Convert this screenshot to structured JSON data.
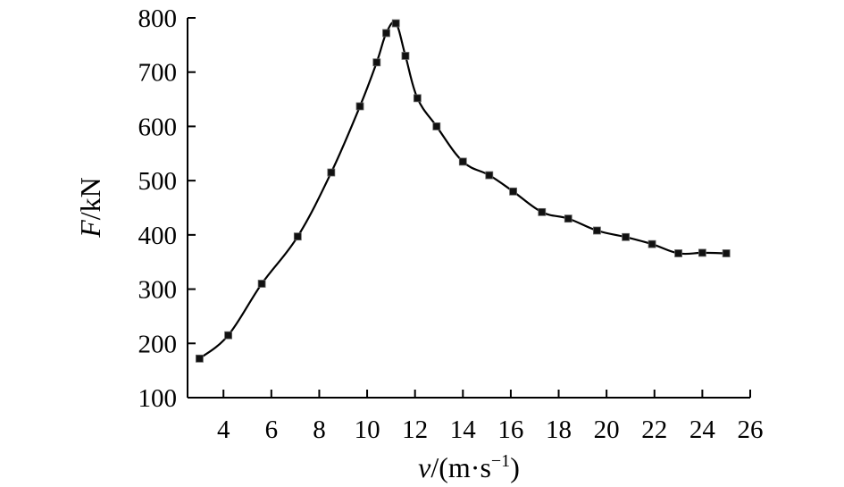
{
  "chart_data": {
    "type": "line",
    "title": "",
    "xlabel": {
      "var": "v",
      "unit_open": "/(m·s",
      "unit_sup": "−1",
      "unit_close": ")"
    },
    "ylabel": {
      "var": "F",
      "unit": "/kN"
    },
    "xlim": [
      2.5,
      26
    ],
    "ylim": [
      100,
      800
    ],
    "xticks": [
      4,
      6,
      8,
      10,
      12,
      14,
      16,
      18,
      20,
      22,
      24,
      26
    ],
    "yticks": [
      100,
      200,
      300,
      400,
      500,
      600,
      700,
      800
    ],
    "grid": false,
    "legend": "none",
    "series": [
      {
        "line_color": "#000000",
        "marker": "square",
        "x": [
          3.0,
          4.2,
          5.6,
          7.1,
          8.5,
          9.7,
          10.4,
          10.8,
          11.2,
          11.6,
          12.1,
          12.9,
          14.0,
          15.1,
          16.1,
          17.3,
          18.4,
          19.6,
          20.8,
          21.9,
          23.0,
          24.0,
          25.0
        ],
        "y": [
          172,
          215,
          310,
          397,
          515,
          637,
          718,
          772,
          790,
          730,
          652,
          600,
          535,
          510,
          480,
          442,
          430,
          408,
          396,
          383,
          366,
          367,
          366
        ]
      }
    ]
  }
}
